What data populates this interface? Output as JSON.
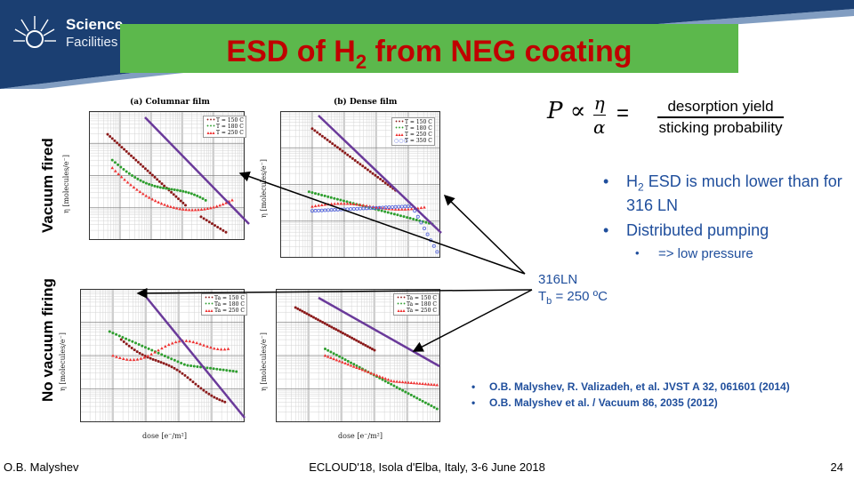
{
  "header": {
    "logo": {
      "line1": "Science",
      "line2": "Facilities",
      "icon": "starburst-logo-icon"
    },
    "title_main": "ESD of H",
    "title_sub": "2",
    "title_rest": " from NEG coating"
  },
  "formula": {
    "lhs": "P ∝",
    "eta": "η",
    "alpha": "α",
    "equals": "=",
    "numerator": "desorption yield",
    "denominator": "sticking probability"
  },
  "bullets": [
    {
      "prefix": "H",
      "sub": "2",
      "text": " ESD is much lower than for 316 LN"
    },
    {
      "text": "Distributed pumping"
    }
  ],
  "sub_bullet": "=> low pressure",
  "steel_label": {
    "line1": "316LN",
    "line2_prefix": "T",
    "line2_sub": "b",
    "line2_rest": " = 250 ºC"
  },
  "references": [
    "O.B. Malyshev, R. Valizadeh, et al. JVST A 32, 061601 (2014)",
    "O.B. Malyshev et al. / Vacuum 86, 2035 (2012)"
  ],
  "footer": {
    "author": "O.B. Malyshev",
    "event": "ECLOUD'18, Isola d'Elba, Italy, 3-6 June 2018",
    "page": "24"
  },
  "row_labels": {
    "top": "Vacuum fired",
    "bottom": "No vacuum firing"
  },
  "panels": {
    "columnar_title": "(a) Columnar film",
    "dense_title": "(b) Dense film",
    "x_label": "dose [e⁻/m²]",
    "y_label": "η [molecules/e⁻]",
    "legend_top": [
      "T = 150 C",
      "T = 180 C",
      "T = 250 C",
      "T = 350 C"
    ],
    "legend_bottom": [
      "Ta = 150 C",
      "Ta = 180 C",
      "Ta = 250 C"
    ]
  },
  "colors": {
    "title_bg": "#5cb84c",
    "title_text": "#c00000",
    "band_dark": "#1b3f72",
    "text_blue": "#1f4e9c",
    "series_150": "#8b1a1a",
    "series_180": "#2e9e2e",
    "series_250": "#ee3333",
    "series_350": "#5566dd",
    "steel_line": "#6a3a9a"
  }
}
